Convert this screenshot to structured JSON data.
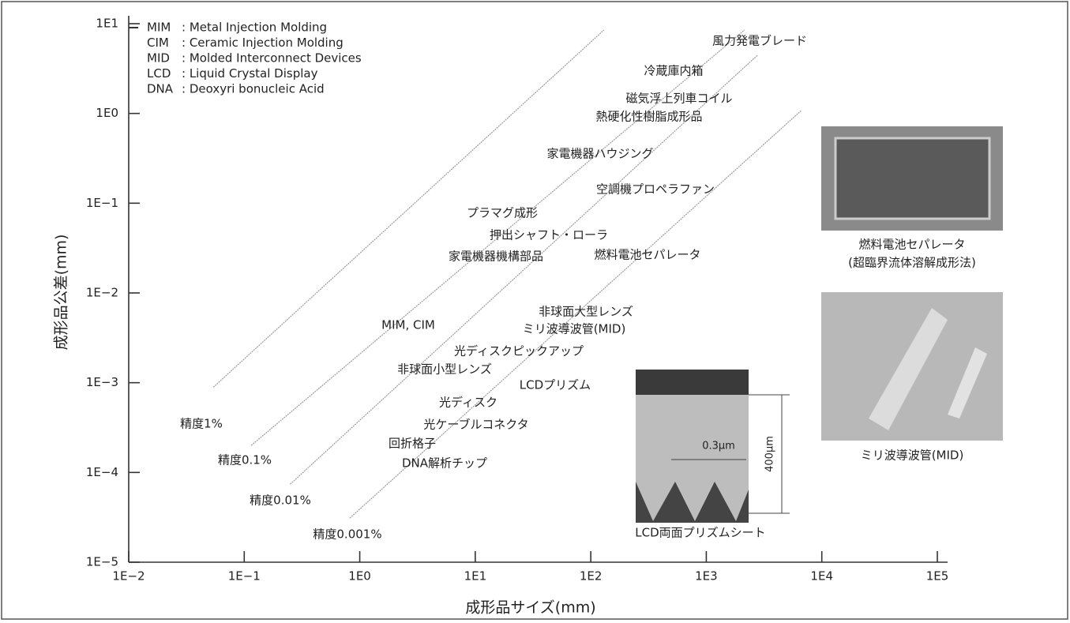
{
  "chart_data": {
    "type": "line",
    "xlabel": "成形品サイズ(mm)",
    "ylabel": "成形品公差(mm)",
    "log_x": true,
    "log_y": true,
    "xlim": [
      0.01,
      100000
    ],
    "ylim": [
      1e-05,
      10
    ],
    "xticks": [
      {
        "value": 0.01,
        "label": "1E−2"
      },
      {
        "value": 0.1,
        "label": "1E−1"
      },
      {
        "value": 1,
        "label": "1E0"
      },
      {
        "value": 10,
        "label": "1E1"
      },
      {
        "value": 100,
        "label": "1E2"
      },
      {
        "value": 1000,
        "label": "1E3"
      },
      {
        "value": 10000,
        "label": "1E4"
      },
      {
        "value": 100000,
        "label": "1E5"
      }
    ],
    "yticks": [
      {
        "value": 10,
        "label": "1E1"
      },
      {
        "value": 1,
        "label": "1E0"
      },
      {
        "value": 0.1,
        "label": "1E−1"
      },
      {
        "value": 0.01,
        "label": "1E−2"
      },
      {
        "value": 0.001,
        "label": "1E−3"
      },
      {
        "value": 0.0001,
        "label": "1E−4"
      },
      {
        "value": 1e-05,
        "label": "1E−5"
      }
    ],
    "series": [
      {
        "name": "精度1%",
        "color": "#9a9a9a",
        "x": [
          0.054,
          130
        ],
        "values": [
          0.00089,
          8.5
        ]
      },
      {
        "name": "精度0.1%",
        "color": "#9a9a9a",
        "x": [
          0.115,
          2140
        ],
        "values": [
          0.0002,
          8.5
        ]
      },
      {
        "name": "精度0.01%",
        "color": "#9a9a9a",
        "x": [
          0.25,
          2800
        ],
        "values": [
          7.4e-05,
          4.5
        ]
      },
      {
        "name": "精度0.001%",
        "color": "#9a9a9a",
        "x": [
          0.82,
          6600
        ],
        "values": [
          3.1e-05,
          1.07
        ]
      }
    ],
    "annotations": [
      "風力発電ブレード",
      "冷蔵庫内箱",
      "磁気浮上列車コイル",
      "熱硬化性樹脂成形品",
      "家電機器ハウジング",
      "空調機プロペラファン",
      "プラマグ成形",
      "押出シャフト・ローラ",
      "家電機器機構部品",
      "燃料電池セパレータ",
      "非球面大型レンズ",
      "ミリ波導波管(MID)",
      "MIM, CIM",
      "光ディスクピックアップ",
      "非球面小型レンズ",
      "LCDプリズム",
      "光ディスク",
      "光ケーブルコネクタ",
      "回折格子",
      "DNA解析チップ"
    ],
    "notes": [
      {
        "abbr": "MIM",
        "text": ": Metal Injection Molding"
      },
      {
        "abbr": "CIM",
        "text": ": Ceramic Injection Molding"
      },
      {
        "abbr": "MID",
        "text": ": Molded Interconnect Devices"
      },
      {
        "abbr": "LCD",
        "text": ": Liquid Crystal Display"
      },
      {
        "abbr": "DNA",
        "text": ": Deoxyri bonucleic Acid"
      }
    ]
  },
  "images": {
    "fuel_cell": [
      "燃料電池セパレータ",
      "(超臨界流体溶解成形法)"
    ],
    "waveguide": [
      "ミリ波導波管(MID)"
    ],
    "prism": {
      "caption": "LCD両面プリズムシート",
      "pitch": "0.3μm",
      "height": "400μm"
    }
  }
}
